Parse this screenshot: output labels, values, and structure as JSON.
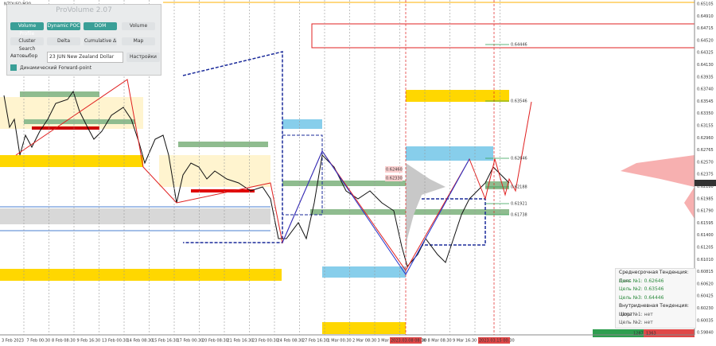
{
  "symbol": "NZDUSD,M30",
  "panel": {
    "title": "ProVolume 2.07",
    "buttons": [
      "Volume Profile",
      "Dynamic POC",
      "DOM",
      "Volume",
      "Cluster Search",
      "Delta",
      "Cumulative Δ",
      "Map"
    ],
    "auto_select": "Автовыбор",
    "instrument": "23 JUN New Zealand Dollar",
    "settings": "Настройки",
    "forward_point": "Динамический Forward-point"
  },
  "price_axis": {
    "labels": [
      "0.65105",
      "0.64910",
      "0.64715",
      "0.64520",
      "0.64325",
      "0.64130",
      "0.63935",
      "0.63740",
      "0.63545",
      "0.63350",
      "0.63155",
      "0.62960",
      "0.62765",
      "0.62570",
      "0.62375",
      "0.62180",
      "0.61985",
      "0.61790",
      "0.61595",
      "0.61400",
      "0.61205",
      "0.61010",
      "0.60815",
      "0.60620",
      "0.60425",
      "0.60230",
      "0.60035",
      "0.59840"
    ],
    "current_price": "0.62263"
  },
  "levels": [
    "0.64446",
    "0.63546",
    "0.62646",
    "0.62188",
    "0.61921",
    "0.61738"
  ],
  "zone_labels": [
    "0.62460",
    "0.62330"
  ],
  "time_axis": {
    "labels": [
      "3 Feb 2023",
      "7 Feb 00:30",
      "8 Feb 08:30",
      "9 Feb 16:30",
      "13 Feb 00:30",
      "14 Feb 08:30",
      "15 Feb 16:30",
      "17 Feb 00:30",
      "20 Feb 08:30",
      "21 Feb 16:30",
      "23 Feb 00:30",
      "24 Feb 08:30",
      "27 Feb 16:30",
      "1 Mar 00:30",
      "2 Mar 08:30",
      "3 Mar 16:30",
      "7 Mar 00:30",
      "8 Mar 08:30",
      "9 Mar 16:30",
      "13 Mar 00:30"
    ],
    "highlights": [
      "2023.03.08 08:30",
      "2023.03.15 00:30"
    ]
  },
  "info": {
    "lines": [
      "Среднесрочная Тенденция: Лонг",
      "Цель №1: 0.62646",
      "Цель №2: 0.63546",
      "Цель №3: 0.64446",
      "Внутридневная Тенденция: Шорт",
      "Цель №1: нет",
      "Цель №2: нет"
    ],
    "volumes": [
      "1287",
      "1363"
    ]
  }
}
